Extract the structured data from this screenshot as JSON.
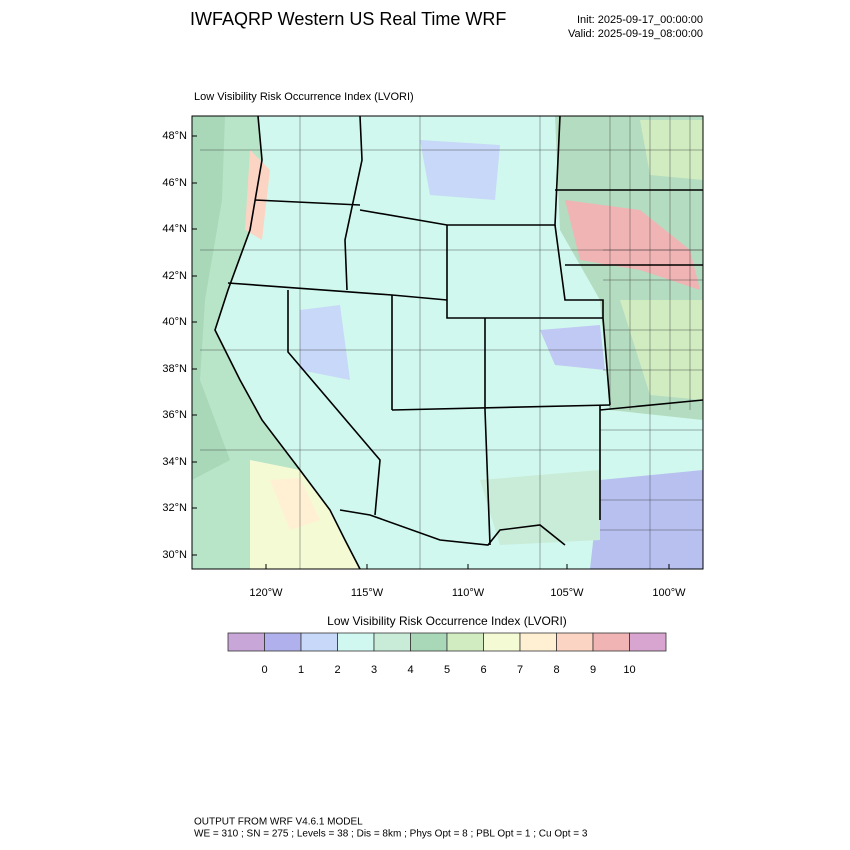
{
  "header": {
    "title": "IWFAQRP Western US Real Time WRF",
    "init": "Init: 2025-09-17_00:00:00",
    "valid": "Valid: 2025-09-19_08:00:00"
  },
  "map": {
    "title": "Low Visibility Risk Occurrence Index   (LVORI)",
    "lat_labels": [
      "48°N",
      "46°N",
      "44°N",
      "42°N",
      "40°N",
      "38°N",
      "36°N",
      "34°N",
      "32°N",
      "30°N"
    ],
    "lon_labels": [
      "120°W",
      "115°W",
      "110°W",
      "105°W",
      "100°W"
    ]
  },
  "colorbar": {
    "title": "Low Visibility Risk Occurrence Index  (LVORI)",
    "labels": [
      "0",
      "1",
      "2",
      "3",
      "4",
      "5",
      "6",
      "7",
      "8",
      "9",
      "10"
    ],
    "colors": [
      "#c9a6d8",
      "#b0b0ec",
      "#c8d8f8",
      "#d0f8f0",
      "#c8ecd8",
      "#a8d8b8",
      "#d0ecc0",
      "#f4fad4",
      "#fff0d4",
      "#fcd4c4",
      "#f0b4b4",
      "#d8a4d0"
    ]
  },
  "footer": {
    "line1": "OUTPUT FROM WRF V4.6.1 MODEL",
    "line2": "WE = 310 ; SN = 275 ; Levels = 38 ; Dis = 8km ; Phys Opt = 8 ; PBL Opt = 1 ; Cu Opt = 3"
  }
}
